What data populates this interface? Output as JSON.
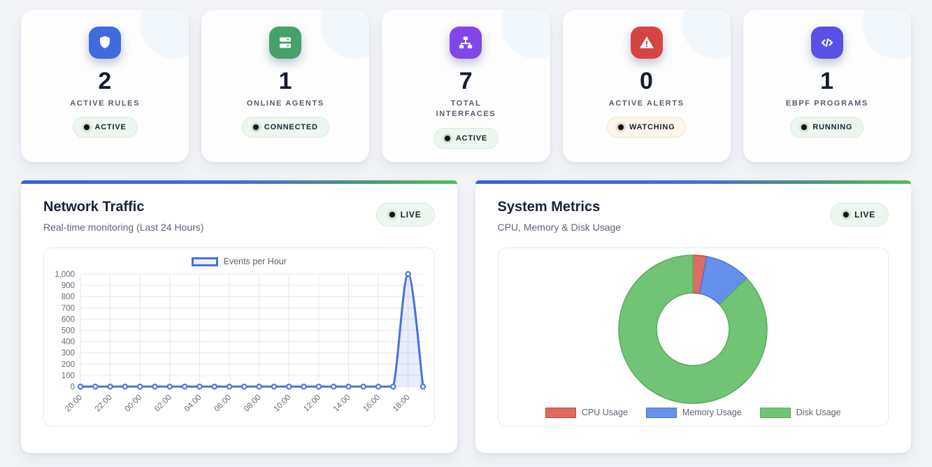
{
  "colors": {
    "page_bg": "#f2f4f8",
    "accent_gradient_start": "#3760e0",
    "accent_gradient_end": "#57bb62",
    "line_blue": "#4472e4",
    "line_fill": "rgba(68,114,228,0.12)",
    "grid": "#e6e6e6",
    "tick_text": "#646a74"
  },
  "stats": [
    {
      "icon": "shield",
      "icon_bg": "#3e6be0",
      "value": "2",
      "label": "ACTIVE RULES",
      "badge": {
        "text": "ACTIVE",
        "variant": "green"
      }
    },
    {
      "icon": "server",
      "icon_bg": "#44a169",
      "value": "1",
      "label": "ONLINE AGENTS",
      "badge": {
        "text": "CONNECTED",
        "variant": "green"
      }
    },
    {
      "icon": "network",
      "icon_bg": "#8345e6",
      "value": "7",
      "label": "TOTAL INTERFACES",
      "badge": {
        "text": "ACTIVE",
        "variant": "green"
      }
    },
    {
      "icon": "alert",
      "icon_bg": "#d64541",
      "value": "0",
      "label": "ACTIVE ALERTS",
      "badge": {
        "text": "WATCHING",
        "variant": "amber"
      }
    },
    {
      "icon": "code",
      "icon_bg": "#5a50e6",
      "value": "1",
      "label": "EBPF PROGRAMS",
      "badge": {
        "text": "RUNNING",
        "variant": "green"
      }
    }
  ],
  "network_card": {
    "title": "Network Traffic",
    "subtitle": "Real-time monitoring (Last 24 Hours)",
    "live_label": "LIVE"
  },
  "system_card": {
    "title": "System Metrics",
    "subtitle": "CPU, Memory & Disk Usage",
    "live_label": "LIVE"
  },
  "chart_data": [
    {
      "type": "line",
      "title": "Events per Hour",
      "legend": [
        "Events per Hour"
      ],
      "legend_position": "top",
      "x": [
        "20:00",
        "21:00",
        "22:00",
        "23:00",
        "00:00",
        "01:00",
        "02:00",
        "03:00",
        "04:00",
        "05:00",
        "06:00",
        "07:00",
        "08:00",
        "09:00",
        "10:00",
        "11:00",
        "12:00",
        "13:00",
        "14:00",
        "15:00",
        "16:00",
        "17:00",
        "18:00",
        "19:00"
      ],
      "values": [
        0,
        0,
        0,
        0,
        0,
        0,
        0,
        0,
        0,
        0,
        0,
        0,
        0,
        0,
        0,
        0,
        0,
        0,
        0,
        0,
        0,
        0,
        1000,
        0
      ],
      "ylim": [
        0,
        1000
      ],
      "y_ticks": [
        0,
        100,
        200,
        300,
        400,
        500,
        600,
        700,
        800,
        900,
        1000
      ],
      "x_tick_every": 2,
      "grid": true,
      "line_color": "#4472e4",
      "fill_color": "rgba(68,114,228,0.12)",
      "point_fill": "#ffffff"
    },
    {
      "type": "doughnut",
      "legend_position": "bottom",
      "labels": [
        "CPU Usage",
        "Memory Usage",
        "Disk Usage"
      ],
      "values": [
        3,
        10,
        87
      ],
      "colors": [
        "#dd6b62",
        "#6590ec",
        "#71c475"
      ],
      "border_colors": [
        "#cf4537",
        "#4676e0",
        "#58ae5c"
      ],
      "hole_ratio": 0.49
    }
  ]
}
